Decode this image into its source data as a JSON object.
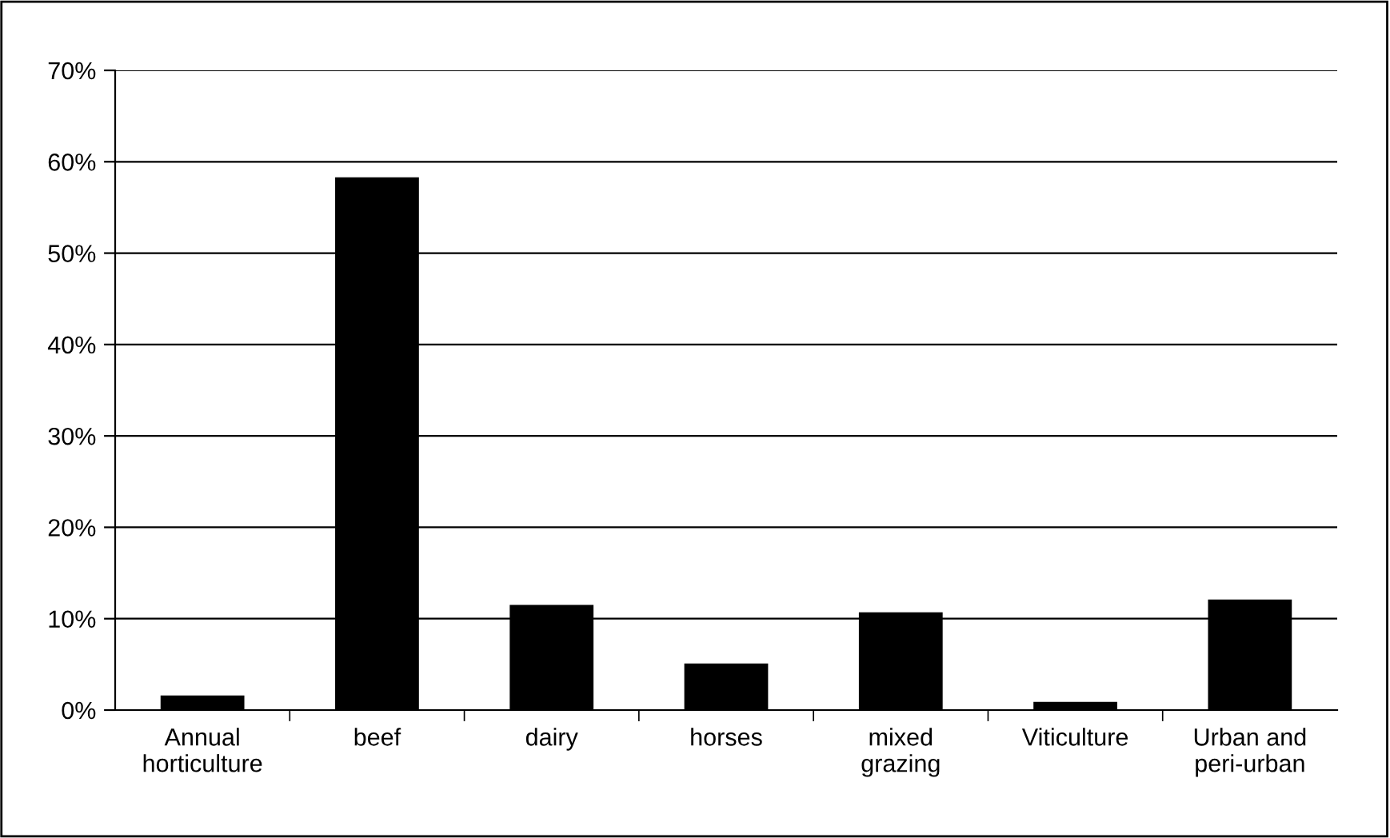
{
  "chart_data": {
    "type": "bar",
    "categories": [
      "Annual\nhorticulture",
      "beef",
      "dairy",
      "horses",
      "mixed\ngrazing",
      "Viticulture",
      "Urban and\nperi-urban"
    ],
    "values": [
      1.6,
      58.3,
      11.5,
      5.1,
      10.7,
      0.9,
      12.1
    ],
    "color": "#000000",
    "ylim": [
      0,
      70
    ],
    "yticks": [
      {
        "value": 0,
        "label": "0%"
      },
      {
        "value": 10,
        "label": "10%"
      },
      {
        "value": 20,
        "label": "20%"
      },
      {
        "value": 30,
        "label": "30%"
      },
      {
        "value": 40,
        "label": "40%"
      },
      {
        "value": 50,
        "label": "50%"
      },
      {
        "value": 60,
        "label": "60%"
      },
      {
        "value": 70,
        "label": "70%"
      }
    ],
    "grid": "y"
  }
}
